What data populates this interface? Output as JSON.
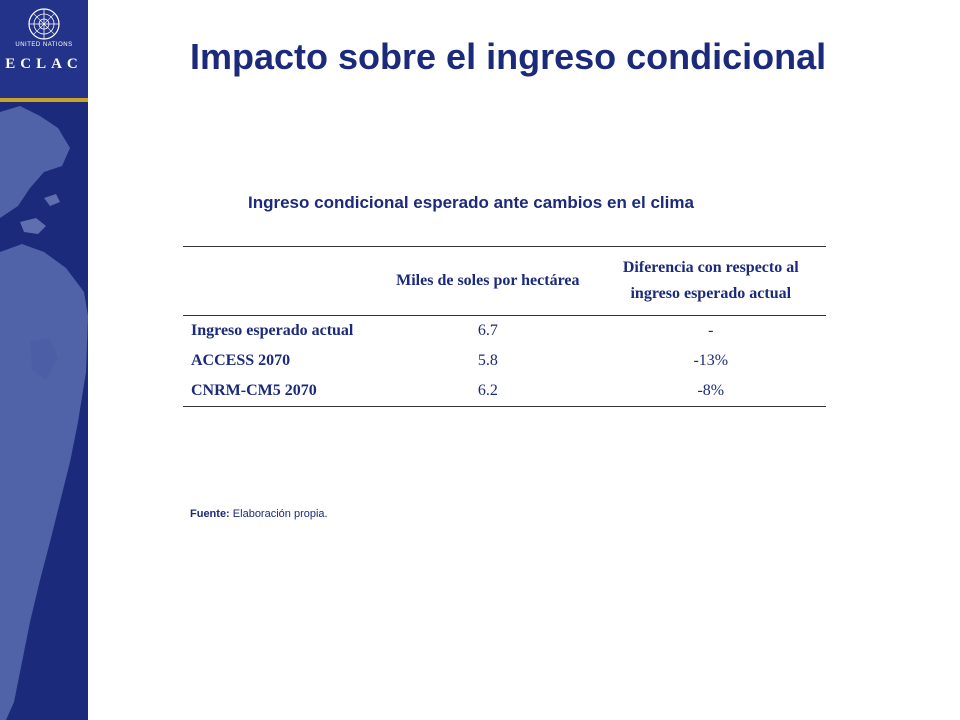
{
  "branding": {
    "un_label": "UNITED NATIONS",
    "org_label": "ECLAC",
    "sidebar_color": "#1b2a7a",
    "accent_color": "#c9a227"
  },
  "title": "Impacto sobre el ingreso condicional",
  "table": {
    "title": "Ingreso condicional esperado ante cambios en el clima",
    "headers": [
      "",
      "Miles de soles por hectárea",
      "Diferencia con respecto al ingreso esperado actual"
    ],
    "rows": [
      {
        "label": "Ingreso esperado actual",
        "value": "6.7",
        "diff": "-"
      },
      {
        "label": "ACCESS 2070",
        "value": "5.8",
        "diff": "-13%"
      },
      {
        "label": "CNRM-CM5 2070",
        "value": "6.2",
        "diff": "-8%"
      }
    ]
  },
  "source": {
    "label": "Fuente:",
    "text": "Elaboración propia."
  },
  "colors": {
    "title": "#1b2a7a",
    "text": "#1b2a7a"
  }
}
